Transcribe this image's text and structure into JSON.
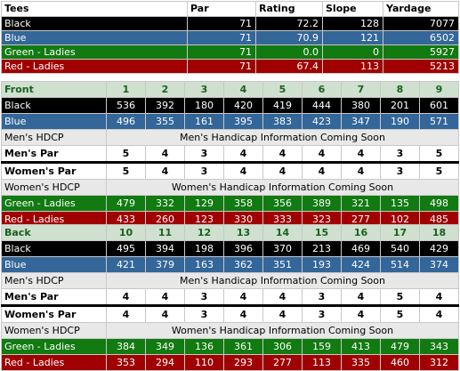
{
  "summary": {
    "headers": [
      "Tees",
      "Par",
      "Rating",
      "Slope",
      "Yardage"
    ],
    "rows": [
      {
        "tee": "Black",
        "par": "71",
        "rating": "72.2",
        "slope": "128",
        "yardage": "7077",
        "style": "black"
      },
      {
        "tee": "Blue",
        "par": "71",
        "rating": "70.9",
        "slope": "121",
        "yardage": "6502",
        "style": "blue"
      },
      {
        "tee": "Green - Ladies",
        "par": "71",
        "rating": "0.0",
        "slope": "0",
        "yardage": "5927",
        "style": "green"
      },
      {
        "tee": "Red - Ladies",
        "par": "71",
        "rating": "67.4",
        "slope": "113",
        "yardage": "5213",
        "style": "red"
      }
    ]
  },
  "front": {
    "label": "Front",
    "holes": [
      "1",
      "2",
      "3",
      "4",
      "5",
      "6",
      "7",
      "8",
      "9"
    ],
    "black": {
      "label": "Black",
      "values": [
        "536",
        "392",
        "180",
        "420",
        "419",
        "444",
        "380",
        "201",
        "601"
      ]
    },
    "blue": {
      "label": "Blue",
      "values": [
        "496",
        "355",
        "161",
        "395",
        "383",
        "423",
        "347",
        "190",
        "571"
      ]
    },
    "mens_hdcp": {
      "label": "Men's HDCP",
      "message": "Men's Handicap Information Coming Soon"
    },
    "mens_par": {
      "label": "Men's Par",
      "values": [
        "5",
        "4",
        "3",
        "4",
        "4",
        "4",
        "4",
        "3",
        "5"
      ]
    },
    "womens_par": {
      "label": "Women's Par",
      "values": [
        "5",
        "4",
        "3",
        "4",
        "4",
        "4",
        "4",
        "3",
        "5"
      ]
    },
    "womens_hdcp": {
      "label": "Women's HDCP",
      "message": "Women's Handicap Information Coming Soon"
    },
    "green": {
      "label": "Green - Ladies",
      "values": [
        "479",
        "332",
        "129",
        "358",
        "356",
        "389",
        "321",
        "135",
        "498"
      ]
    },
    "red": {
      "label": "Red - Ladies",
      "values": [
        "433",
        "260",
        "123",
        "330",
        "333",
        "323",
        "277",
        "102",
        "485"
      ]
    }
  },
  "back": {
    "label": "Back",
    "holes": [
      "10",
      "11",
      "12",
      "13",
      "14",
      "15",
      "16",
      "17",
      "18"
    ],
    "black": {
      "label": "Black",
      "values": [
        "495",
        "394",
        "198",
        "396",
        "370",
        "213",
        "469",
        "540",
        "429"
      ]
    },
    "blue": {
      "label": "Blue",
      "values": [
        "421",
        "379",
        "163",
        "362",
        "351",
        "193",
        "424",
        "514",
        "374"
      ]
    },
    "mens_hdcp": {
      "label": "Men's HDCP",
      "message": "Men's Handicap Information Coming Soon"
    },
    "mens_par": {
      "label": "Men's Par",
      "values": [
        "4",
        "4",
        "3",
        "4",
        "4",
        "3",
        "4",
        "5",
        "4"
      ]
    },
    "womens_par": {
      "label": "Women's Par",
      "values": [
        "4",
        "4",
        "3",
        "4",
        "4",
        "3",
        "4",
        "5",
        "4"
      ]
    },
    "womens_hdcp": {
      "label": "Women's HDCP",
      "message": "Women's Handicap Information Coming Soon"
    },
    "green": {
      "label": "Green - Ladies",
      "values": [
        "384",
        "349",
        "136",
        "361",
        "306",
        "159",
        "413",
        "479",
        "343"
      ]
    },
    "red": {
      "label": "Red - Ladies",
      "values": [
        "353",
        "294",
        "110",
        "293",
        "277",
        "113",
        "335",
        "460",
        "312"
      ]
    }
  },
  "colors": {
    "black": "#000000",
    "blue": "#336699",
    "green": "#117a11",
    "red": "#a00000",
    "header_green": "#cfe0cf",
    "gray": "#e8e8e8"
  }
}
